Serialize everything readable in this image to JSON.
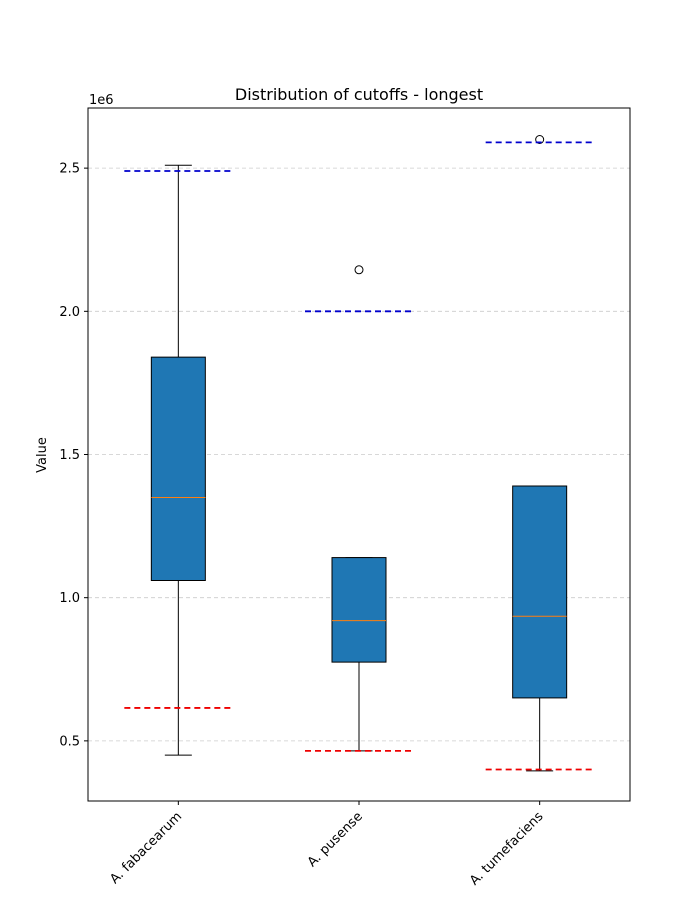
{
  "chart_data": {
    "type": "box",
    "title": "Distribution of cutoffs - longest",
    "xlabel": "",
    "ylabel": "Value",
    "y_offset_label": "1e6",
    "ylim": [
      0.29,
      2.71
    ],
    "y_ticks": [
      0.5,
      1.0,
      1.5,
      2.0,
      2.5
    ],
    "y_tick_labels": [
      "0.5",
      "1.0",
      "1.5",
      "2.0",
      "2.5"
    ],
    "grid": "y-dashed",
    "categories": [
      "A. fabacearum",
      "A. pusense",
      "A. tumefaciens"
    ],
    "boxes": [
      {
        "whisker_low": 0.45,
        "q1": 1.06,
        "median": 1.35,
        "q3": 1.84,
        "whisker_high": 2.51,
        "outliers": []
      },
      {
        "whisker_low": 0.465,
        "q1": 0.775,
        "median": 0.92,
        "q3": 1.14,
        "whisker_high": 1.14,
        "outliers": [
          2.145
        ]
      },
      {
        "whisker_low": 0.395,
        "q1": 0.65,
        "median": 0.935,
        "q3": 1.39,
        "whisker_high": 1.39,
        "outliers": [
          2.6
        ]
      }
    ],
    "upper_cutoffs": [
      2.49,
      2.0,
      2.59
    ],
    "lower_cutoffs": [
      0.615,
      0.465,
      0.4
    ],
    "colors": {
      "box_fill": "#1f77b4",
      "median": "#ff7f0e",
      "upper_cutoff": "#0000cc",
      "lower_cutoff": "#ee0000",
      "grid": "#cccccc"
    }
  }
}
